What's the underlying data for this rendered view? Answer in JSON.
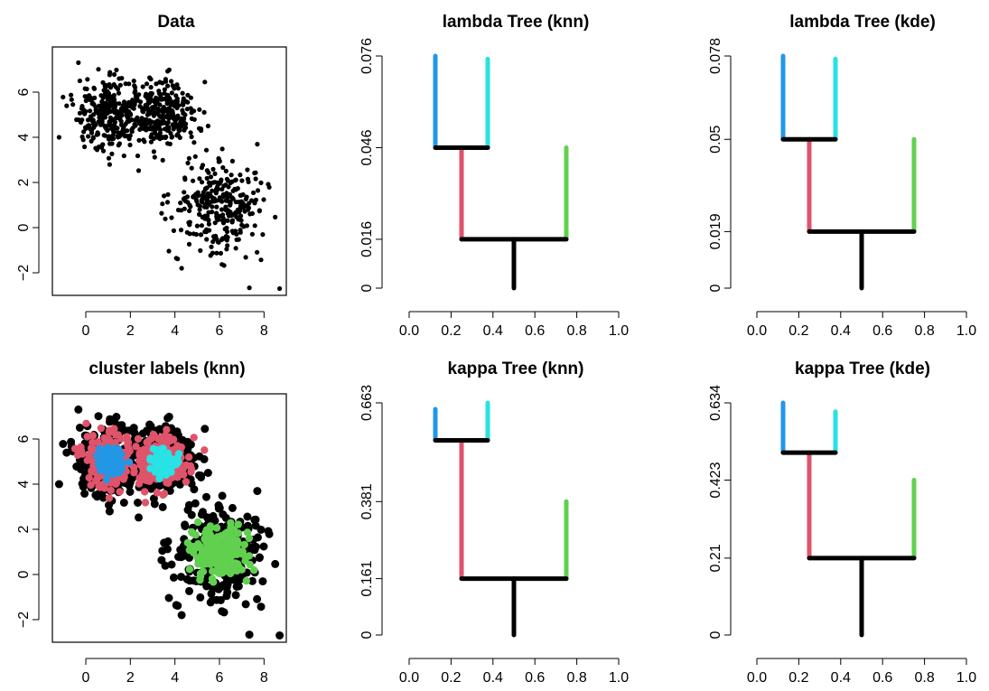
{
  "chart_data": [
    {
      "type": "scatter",
      "title": "Data",
      "xlabel": "",
      "ylabel": "",
      "xlim": [
        -1.5,
        9.0
      ],
      "ylim": [
        -3.0,
        8.0
      ],
      "x_ticks": [
        0,
        2,
        4,
        6,
        8
      ],
      "y_ticks": [
        -2,
        0,
        2,
        4,
        6
      ],
      "x_tick_labels": [
        "0",
        "2",
        "4",
        "6",
        "8"
      ],
      "y_tick_labels": [
        "−2",
        "0",
        "2",
        "4",
        "6"
      ],
      "grid": false,
      "series": [
        {
          "color": "#000000",
          "clusters": [
            {
              "center": [
                1.0,
                5.0
              ],
              "sd": 0.75,
              "n": 300
            },
            {
              "center": [
                3.5,
                5.0
              ],
              "sd": 0.75,
              "n": 300
            },
            {
              "center": [
                6.0,
                1.0
              ],
              "sd": 1.0,
              "n": 300
            }
          ],
          "extra_points": [
            [
              8.7,
              -2.7
            ],
            [
              -1.2,
              4.0
            ],
            [
              4.3,
              -1.8
            ]
          ]
        }
      ]
    },
    {
      "type": "tree",
      "title": "lambda Tree (knn)",
      "xlim": [
        0.0,
        1.0
      ],
      "x_ticks": [
        0.0,
        0.2,
        0.4,
        0.6,
        0.8,
        1.0
      ],
      "x_tick_labels": [
        "0.0",
        "0.2",
        "0.4",
        "0.6",
        "0.8",
        "1.0"
      ],
      "y_ticks": [
        0,
        0.016,
        0.046,
        0.076
      ],
      "y_tick_labels": [
        "0",
        "0.016",
        "0.046",
        "0.076"
      ],
      "ymax": 0.076,
      "branches": [
        {
          "x": 0.5,
          "y0": 0,
          "y1": 0.016,
          "color": "#000000"
        },
        {
          "x": 0.25,
          "y0": 0.016,
          "y1": 0.046,
          "color": "#DF536B"
        },
        {
          "x": 0.75,
          "y0": 0.016,
          "y1": 0.046,
          "color": "#61D04F"
        },
        {
          "x": 0.125,
          "y0": 0.046,
          "y1": 0.076,
          "color": "#2297E6"
        },
        {
          "x": 0.375,
          "y0": 0.046,
          "y1": 0.075,
          "color": "#28E2E5"
        }
      ],
      "joins": [
        {
          "x0": 0.25,
          "x1": 0.75,
          "y": 0.016
        },
        {
          "x0": 0.125,
          "x1": 0.375,
          "y": 0.046
        }
      ]
    },
    {
      "type": "tree",
      "title": "lambda Tree (kde)",
      "xlim": [
        0.0,
        1.0
      ],
      "x_ticks": [
        0.0,
        0.2,
        0.4,
        0.6,
        0.8,
        1.0
      ],
      "x_tick_labels": [
        "0.0",
        "0.2",
        "0.4",
        "0.6",
        "0.8",
        "1.0"
      ],
      "y_ticks": [
        0,
        0.019,
        0.05,
        0.078
      ],
      "y_tick_labels": [
        "0",
        "0.019",
        "0.05",
        "0.078"
      ],
      "ymax": 0.078,
      "branches": [
        {
          "x": 0.5,
          "y0": 0,
          "y1": 0.019,
          "color": "#000000"
        },
        {
          "x": 0.25,
          "y0": 0.019,
          "y1": 0.05,
          "color": "#DF536B"
        },
        {
          "x": 0.75,
          "y0": 0.019,
          "y1": 0.05,
          "color": "#61D04F"
        },
        {
          "x": 0.125,
          "y0": 0.05,
          "y1": 0.078,
          "color": "#2297E6"
        },
        {
          "x": 0.375,
          "y0": 0.05,
          "y1": 0.077,
          "color": "#28E2E5"
        }
      ],
      "joins": [
        {
          "x0": 0.25,
          "x1": 0.75,
          "y": 0.019
        },
        {
          "x0": 0.125,
          "x1": 0.375,
          "y": 0.05
        }
      ]
    },
    {
      "type": "scatter",
      "title": "cluster labels (knn)",
      "xlabel": "",
      "ylabel": "",
      "xlim": [
        -1.5,
        9.0
      ],
      "ylim": [
        -3.0,
        8.0
      ],
      "x_ticks": [
        0,
        2,
        4,
        6,
        8
      ],
      "y_ticks": [
        -2,
        0,
        2,
        4,
        6
      ],
      "x_tick_labels": [
        "0",
        "2",
        "4",
        "6",
        "8"
      ],
      "y_tick_labels": [
        "−2",
        "0",
        "2",
        "4",
        "6"
      ],
      "grid": false,
      "series": [
        {
          "color": "#000000",
          "clusters": [
            {
              "center": [
                1.0,
                5.0
              ],
              "sd": 0.75,
              "n": 300
            },
            {
              "center": [
                3.5,
                5.0
              ],
              "sd": 0.75,
              "n": 300
            },
            {
              "center": [
                6.0,
                1.0
              ],
              "sd": 1.0,
              "n": 300
            }
          ],
          "extra_points": [
            [
              8.7,
              -2.7
            ],
            [
              -1.2,
              4.0
            ],
            [
              4.3,
              -1.8
            ]
          ]
        },
        {
          "color": "#DF536B",
          "clusters": [
            {
              "center": [
                1.0,
                5.0
              ],
              "sd": 0.55,
              "n": 220
            },
            {
              "center": [
                3.5,
                5.0
              ],
              "sd": 0.55,
              "n": 220
            }
          ]
        },
        {
          "color": "#61D04F",
          "clusters": [
            {
              "center": [
                6.0,
                1.0
              ],
              "sd": 0.6,
              "n": 220
            }
          ]
        },
        {
          "color": "#2297E6",
          "clusters": [
            {
              "center": [
                1.1,
                5.0
              ],
              "sd": 0.28,
              "n": 90
            }
          ]
        },
        {
          "color": "#28E2E5",
          "clusters": [
            {
              "center": [
                3.5,
                5.0
              ],
              "sd": 0.28,
              "n": 90
            }
          ]
        }
      ]
    },
    {
      "type": "tree",
      "title": "kappa Tree (knn)",
      "xlim": [
        0.0,
        1.0
      ],
      "x_ticks": [
        0.0,
        0.2,
        0.4,
        0.6,
        0.8,
        1.0
      ],
      "x_tick_labels": [
        "0.0",
        "0.2",
        "0.4",
        "0.6",
        "0.8",
        "1.0"
      ],
      "y_ticks": [
        0,
        0.161,
        0.381,
        0.663
      ],
      "y_tick_labels": [
        "0",
        "0.161",
        "0.381",
        "0.663"
      ],
      "ymax": 0.663,
      "branches": [
        {
          "x": 0.5,
          "y0": 0,
          "y1": 0.161,
          "color": "#000000"
        },
        {
          "x": 0.25,
          "y0": 0.161,
          "y1": 0.556,
          "color": "#DF536B"
        },
        {
          "x": 0.75,
          "y0": 0.161,
          "y1": 0.381,
          "color": "#61D04F"
        },
        {
          "x": 0.125,
          "y0": 0.556,
          "y1": 0.645,
          "color": "#2297E6"
        },
        {
          "x": 0.375,
          "y0": 0.556,
          "y1": 0.663,
          "color": "#28E2E5"
        }
      ],
      "joins": [
        {
          "x0": 0.25,
          "x1": 0.75,
          "y": 0.161
        },
        {
          "x0": 0.125,
          "x1": 0.375,
          "y": 0.556
        }
      ]
    },
    {
      "type": "tree",
      "title": "kappa Tree (kde)",
      "xlim": [
        0.0,
        1.0
      ],
      "x_ticks": [
        0.0,
        0.2,
        0.4,
        0.6,
        0.8,
        1.0
      ],
      "x_tick_labels": [
        "0.0",
        "0.2",
        "0.4",
        "0.6",
        "0.8",
        "1.0"
      ],
      "y_ticks": [
        0,
        0.21,
        0.423,
        0.634
      ],
      "y_tick_labels": [
        "0",
        "0.21",
        "0.423",
        "0.634"
      ],
      "ymax": 0.634,
      "branches": [
        {
          "x": 0.5,
          "y0": 0,
          "y1": 0.21,
          "color": "#000000"
        },
        {
          "x": 0.25,
          "y0": 0.21,
          "y1": 0.498,
          "color": "#DF536B"
        },
        {
          "x": 0.75,
          "y0": 0.21,
          "y1": 0.423,
          "color": "#61D04F"
        },
        {
          "x": 0.125,
          "y0": 0.498,
          "y1": 0.634,
          "color": "#2297E6"
        },
        {
          "x": 0.375,
          "y0": 0.498,
          "y1": 0.61,
          "color": "#28E2E5"
        }
      ],
      "joins": [
        {
          "x0": 0.25,
          "x1": 0.75,
          "y": 0.21
        },
        {
          "x0": 0.125,
          "x1": 0.375,
          "y": 0.498
        }
      ]
    }
  ]
}
